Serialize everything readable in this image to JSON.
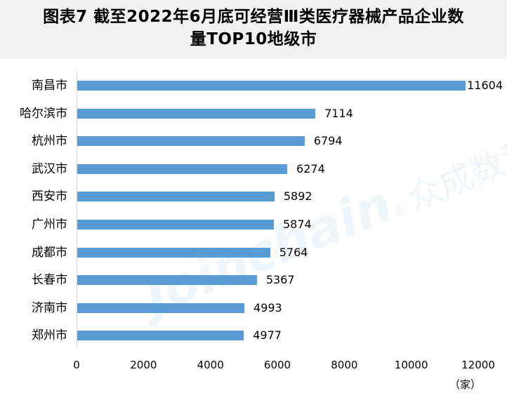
{
  "title": "图表7  截至2022年6月底可经营Ⅲ类医疗器械产品企业数量TOP10地级市",
  "title_line1": "图表7  截至2022年6月底可经营Ⅲ类医疗器械产品企业数",
  "title_line2": "量TOP10地级市",
  "watermark": {
    "latin": "Joinchain",
    "mark": "®",
    "cn": "众成数科"
  },
  "colors": {
    "bar": "#5b9bd5",
    "title_bg": "#f2f2f2",
    "axis": "#d9d9d9"
  },
  "x_unit": "（家）",
  "chart_data": {
    "type": "bar",
    "orientation": "horizontal",
    "title": "图表7 截至2022年6月底可经营Ⅲ类医疗器械产品企业数量TOP10地级市",
    "categories": [
      "南昌市",
      "哈尔滨市",
      "杭州市",
      "武汉市",
      "西安市",
      "广州市",
      "成都市",
      "长春市",
      "济南市",
      "郑州市"
    ],
    "values": [
      11604,
      7114,
      6794,
      6274,
      5892,
      5874,
      5764,
      5367,
      4993,
      4977
    ],
    "xlabel": "（家）",
    "ylabel": "",
    "xlim": [
      0,
      12000
    ],
    "xticks": [
      "0",
      "2000",
      "4000",
      "6000",
      "8000",
      "10000",
      "12000"
    ],
    "grid": false,
    "legend": null,
    "data_labels": true
  }
}
